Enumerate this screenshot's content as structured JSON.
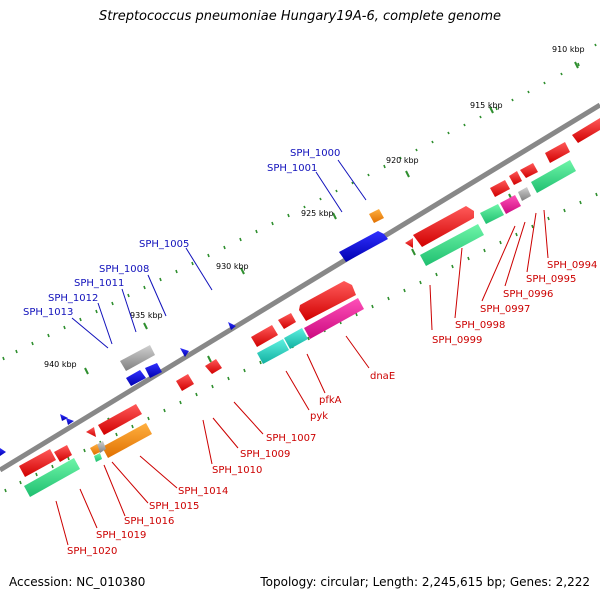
{
  "title": "Streptococcus pneumoniae Hungary19A-6, complete genome",
  "footer": {
    "accession": "Accession: NC_010380",
    "topology": "Topology: circular; Length: 2,245,615 bp; Genes: 2,222"
  },
  "colors": {
    "backbone": "#808080",
    "tick": "#2f8f2f",
    "forward_gene": "#0000dd",
    "reverse_gene": "#ee0000",
    "cds_teal": "#22d0c0",
    "cds_green": "#33dd88",
    "gene_gray": "#9a9a9a",
    "gene_orange": "#ff8c00",
    "gene_magenta": "#ee1a9a",
    "forward_label": "#1111bb",
    "reverse_label": "#cc0000"
  },
  "scale_labels": [
    "910 kbp",
    "915 kbp",
    "920 kbp",
    "925 kbp",
    "930 kbp",
    "935 kbp",
    "940 kbp"
  ],
  "forward_labels": [
    "SPH_1000",
    "SPH_1001",
    "SPH_1005",
    "SPH_1008",
    "SPH_1011",
    "SPH_1012",
    "SPH_1013"
  ],
  "reverse_labels": [
    "SPH_0994",
    "SPH_0995",
    "SPH_0996",
    "SPH_0997",
    "SPH_0998",
    "SPH_0999",
    "dnaE",
    "pfkA",
    "pyk",
    "SPH_1007",
    "SPH_1009",
    "SPH_1010",
    "SPH_1014",
    "SPH_1015",
    "SPH_1016",
    "SPH_1019",
    "SPH_1020"
  ]
}
